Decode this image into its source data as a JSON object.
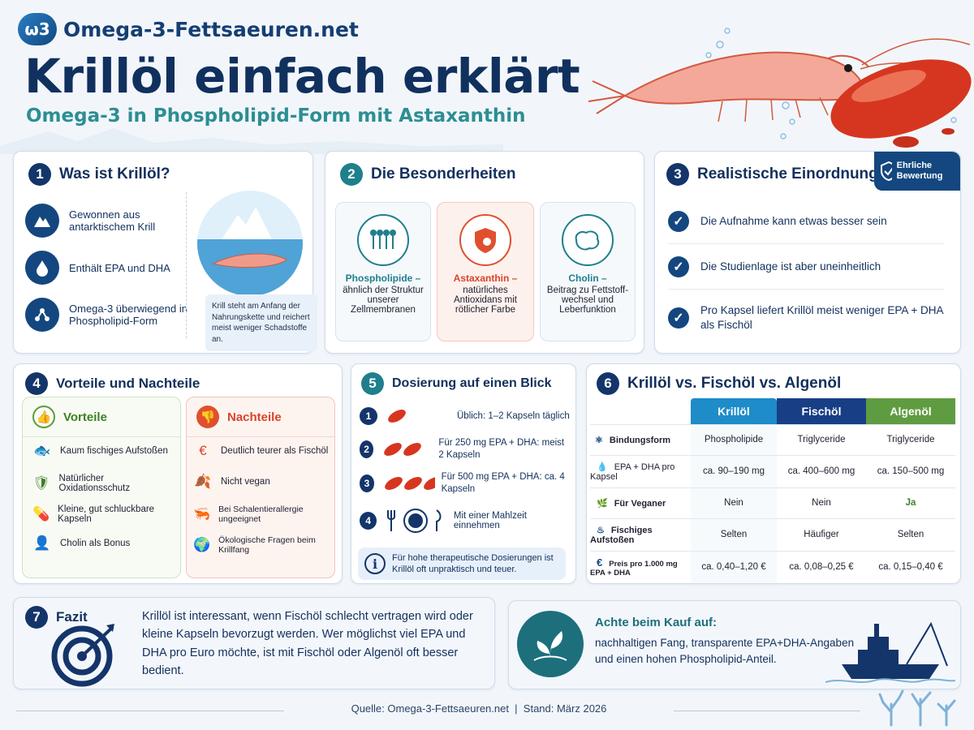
{
  "header": {
    "logo": "ω3",
    "site": "Omega-3-Fettsaeuren.net",
    "title": "Krillöl einfach erklärt",
    "subtitle": "Omega-3 in Phospholipid-Form mit Astaxanthin"
  },
  "s1": {
    "num": "1",
    "title": "Was ist Krillöl?",
    "items": [
      "Gewonnen aus antarktischem Krill",
      "Enthält EPA und DHA",
      "Omega-3 überwiegend in Phospholipid-Form"
    ],
    "note": "Krill steht am Anfang der Nahrungskette und reichert meist weniger Schadstoffe an."
  },
  "s2": {
    "num": "2",
    "title": "Die Besonderheiten",
    "cards": [
      {
        "head": "Phospholipide –",
        "text": "ähnlich der Struktur unserer Zellmembranen"
      },
      {
        "head": "Astaxanthin –",
        "text": "natürliches Antioxidans mit rötlicher Farbe"
      },
      {
        "head": "Cholin –",
        "text": "Beitrag zu Fettstoff-wechsel und Leberfunktion"
      }
    ]
  },
  "s3": {
    "num": "3",
    "title": "Realistische Einordnung",
    "badge": "Ehrliche Bewertung",
    "items": [
      "Die Aufnahme kann etwas besser sein",
      "Die Studienlage ist aber uneinheitlich",
      "Pro Kapsel liefert Krillöl meist weniger EPA + DHA als Fischöl"
    ]
  },
  "s4": {
    "num": "4",
    "title": "Vorteile und Nachteile",
    "pros_title": "Vorteile",
    "pros": [
      "Kaum fischiges Aufstoßen",
      "Natürlicher Oxidationsschutz",
      "Kleine, gut schluckbare Kapseln",
      "Cholin als Bonus"
    ],
    "cons_title": "Nachteile",
    "cons": [
      "Deutlich teurer als Fischöl",
      "Nicht vegan",
      "Bei Schalentierallergie ungeeignet",
      "Ökologische Fragen beim Krillfang"
    ]
  },
  "s5": {
    "num": "5",
    "title": "Dosierung auf einen Blick",
    "steps": [
      {
        "n": "1",
        "text": "Üblich: 1–2 Kapseln täglich"
      },
      {
        "n": "2",
        "text": "Für 250 mg EPA + DHA: meist 2 Kapseln"
      },
      {
        "n": "3",
        "text": "Für 500 mg EPA + DHA: ca. 4 Kapseln"
      },
      {
        "n": "4",
        "text": "Mit einer Mahlzeit einnehmen"
      }
    ],
    "note": "Für hohe therapeutische Dosierungen ist Krillöl oft unpraktisch und teuer."
  },
  "s6": {
    "num": "6",
    "title": "Krillöl vs. Fischöl vs. Algenöl",
    "cols": [
      "Krillöl",
      "Fischöl",
      "Algenöl"
    ],
    "rows": [
      {
        "label": "Bindungsform",
        "vals": [
          "Phospholipide",
          "Triglyceride",
          "Triglyceride"
        ]
      },
      {
        "label": "EPA + DHA pro Kapsel",
        "vals": [
          "ca. 90–190 mg",
          "ca. 400–600 mg",
          "ca. 150–500 mg"
        ]
      },
      {
        "label": "Für Veganer",
        "vals": [
          "Nein",
          "Nein",
          "Ja"
        ]
      },
      {
        "label": "Fischiges Aufstoßen",
        "vals": [
          "Selten",
          "Häufiger",
          "Selten"
        ]
      },
      {
        "label": "Preis pro 1.000 mg EPA + DHA",
        "vals": [
          "ca. 0,40–1,20 €",
          "ca. 0,08–0,25 €",
          "ca. 0,15–0,40 €"
        ]
      }
    ]
  },
  "s7": {
    "num": "7",
    "title": "Fazit",
    "text": "Krillöl ist interessant, wenn Fischöl schlecht vertragen wird oder kleine Kapseln bevorzugt werden. Wer möglichst viel EPA und DHA pro Euro möchte, ist mit Fischöl oder Algenöl oft besser bedient."
  },
  "buy": {
    "title": "Achte beim Kauf auf:",
    "text": "nachhaltigen Fang, transparente EPA+DHA-Angaben und einen hohen Phospholipid-Anteil."
  },
  "footer": {
    "text": "Quelle: Omega-3-Fettsaeuren.net  |  Stand: März 2026"
  },
  "colors": {
    "navy": "#14356a",
    "teal": "#1f7f8c",
    "green": "#5d9b3d",
    "red": "#e0502e",
    "krill": "#1d8cc8",
    "fish": "#183e86",
    "algae": "#5f9c41"
  }
}
